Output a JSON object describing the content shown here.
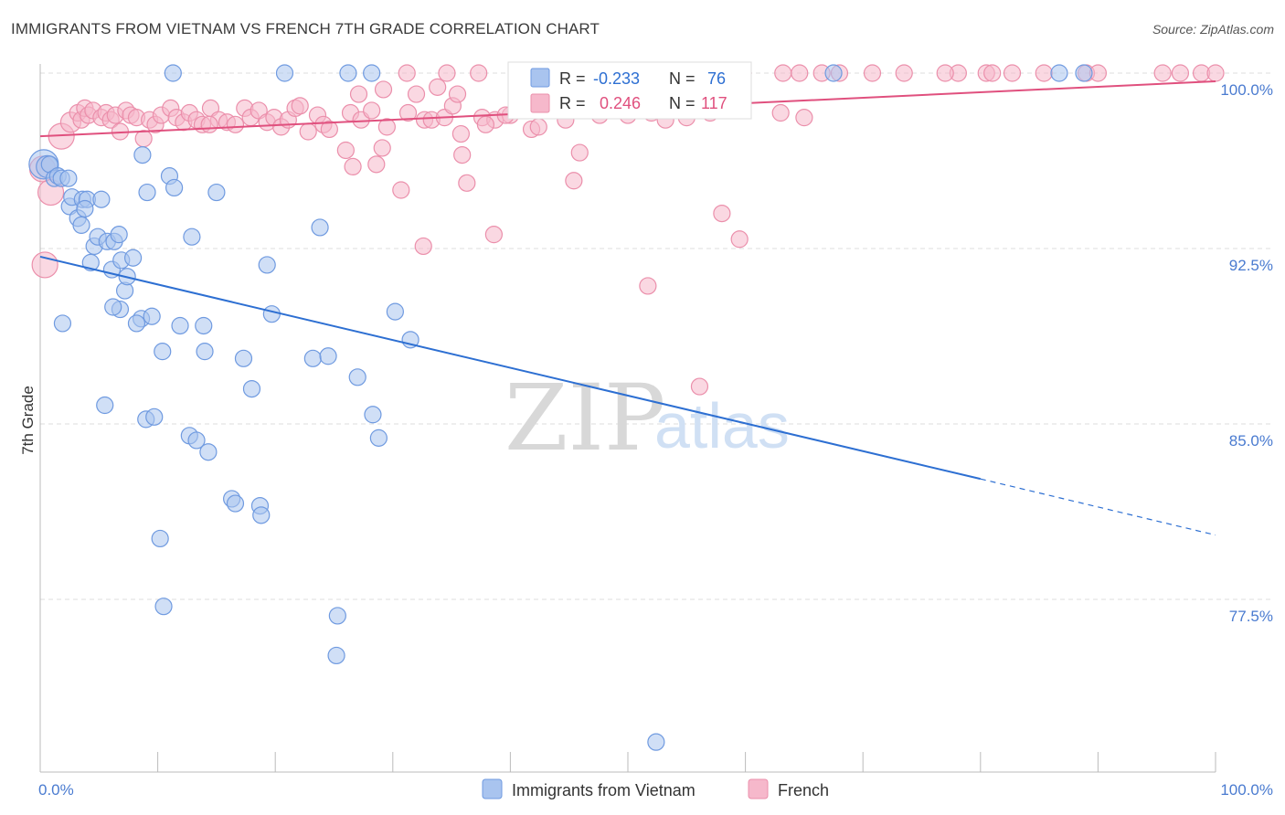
{
  "header": {
    "title": "IMMIGRANTS FROM VIETNAM VS FRENCH 7TH GRADE CORRELATION CHART",
    "source": "Source: ZipAtlas.com"
  },
  "watermark": {
    "zip": "ZIP",
    "atlas": "atlas"
  },
  "colors": {
    "blue_fill": "#a9c4ef",
    "blue_stroke": "#6f9ae0",
    "blue_line": "#2d6fd2",
    "pink_fill": "#f6b8cb",
    "pink_stroke": "#eb8fab",
    "pink_line": "#e0507e",
    "grid": "#dddddd",
    "tick_text": "#4a7bd0"
  },
  "stats": {
    "blue": {
      "r_label": "R =",
      "r_value": "-0.233",
      "n_label": "N =",
      "n_value": "76"
    },
    "pink": {
      "r_label": "R =",
      "r_value": "0.246",
      "n_label": "N =",
      "n_value": "117"
    }
  },
  "chart_data": {
    "type": "scatter",
    "title": "IMMIGRANTS FROM VIETNAM VS FRENCH 7TH GRADE CORRELATION CHART",
    "xlabel": "",
    "ylabel": "7th Grade",
    "xlim": [
      0,
      100
    ],
    "ylim": [
      71.5,
      101.5
    ],
    "x_ticks": [
      0,
      10,
      20,
      30,
      40,
      50,
      60,
      70,
      80,
      90,
      100
    ],
    "x_tick_labels": [
      {
        "value": 0,
        "label": "0.0%"
      },
      {
        "value": 100,
        "label": "100.0%"
      }
    ],
    "y_ticks": [
      {
        "value": 100,
        "label": "100.0%"
      },
      {
        "value": 92.5,
        "label": "92.5%"
      },
      {
        "value": 85,
        "label": "85.0%"
      },
      {
        "value": 77.5,
        "label": "77.5%"
      }
    ],
    "grid": true,
    "legend": {
      "placement": "bottom-center",
      "entries": [
        "Immigrants from Vietnam",
        "French"
      ]
    },
    "series": [
      {
        "name": "Immigrants from Vietnam",
        "color": "#a9c4ef",
        "trend": {
          "x0": 0,
          "y0": 92.15,
          "x1": 80,
          "y1": 82.65,
          "dashed_to_x": 100,
          "dashed_to_y": 80.25
        },
        "points": [
          [
            0.3,
            96.1,
            16
          ],
          [
            0.6,
            96.0,
            12
          ],
          [
            0.8,
            96.1,
            9
          ],
          [
            1.2,
            95.5,
            9
          ],
          [
            1.5,
            95.6,
            9
          ],
          [
            1.8,
            95.5,
            9
          ],
          [
            2.4,
            95.5,
            9
          ],
          [
            2.5,
            94.3,
            9
          ],
          [
            2.7,
            94.7,
            9
          ],
          [
            3.2,
            93.8,
            9
          ],
          [
            3.5,
            93.5,
            9
          ],
          [
            3.6,
            94.6,
            9
          ],
          [
            4.0,
            94.6,
            9
          ],
          [
            4.3,
            91.9,
            9
          ],
          [
            4.6,
            92.6,
            9
          ],
          [
            4.9,
            93.0,
            9
          ],
          [
            5.2,
            94.6,
            9
          ],
          [
            5.7,
            92.8,
            9
          ],
          [
            6.1,
            91.6,
            9
          ],
          [
            6.3,
            92.8,
            9
          ],
          [
            6.7,
            93.1,
            9
          ],
          [
            6.9,
            92.0,
            9
          ],
          [
            7.2,
            90.7,
            9
          ],
          [
            7.4,
            91.3,
            9
          ],
          [
            7.9,
            92.1,
            9
          ],
          [
            8.6,
            89.5,
            9
          ],
          [
            9.1,
            94.9,
            9
          ],
          [
            9.5,
            89.6,
            9
          ],
          [
            10.4,
            88.1,
            9
          ],
          [
            11.0,
            95.6,
            9
          ],
          [
            11.4,
            95.1,
            9
          ],
          [
            11.9,
            89.2,
            9
          ],
          [
            12.9,
            93.0,
            9
          ],
          [
            13.9,
            89.2,
            9
          ],
          [
            14.0,
            88.1,
            9
          ],
          [
            15.0,
            94.9,
            9
          ],
          [
            17.3,
            87.8,
            9
          ],
          [
            18.0,
            86.5,
            9
          ],
          [
            19.3,
            91.8,
            9
          ],
          [
            19.7,
            89.7,
            9
          ],
          [
            23.2,
            87.8,
            9
          ],
          [
            23.8,
            93.4,
            9
          ],
          [
            24.5,
            87.9,
            9
          ],
          [
            27.0,
            87.0,
            9
          ],
          [
            28.3,
            85.4,
            9
          ],
          [
            28.8,
            84.4,
            9
          ],
          [
            30.2,
            89.8,
            9
          ],
          [
            31.5,
            88.6,
            9
          ],
          [
            5.5,
            85.8,
            9
          ],
          [
            9.0,
            85.2,
            9
          ],
          [
            9.7,
            85.3,
            9
          ],
          [
            12.7,
            84.5,
            9
          ],
          [
            13.3,
            84.3,
            9
          ],
          [
            14.3,
            83.8,
            9
          ],
          [
            16.3,
            81.8,
            9
          ],
          [
            16.6,
            81.6,
            9
          ],
          [
            18.7,
            81.5,
            9
          ],
          [
            18.8,
            81.1,
            9
          ],
          [
            10.2,
            80.1,
            9
          ],
          [
            10.5,
            77.2,
            9
          ],
          [
            25.3,
            76.8,
            9
          ],
          [
            25.2,
            75.1,
            9
          ],
          [
            52.4,
            71.4,
            9
          ],
          [
            1.9,
            89.3,
            9
          ],
          [
            6.8,
            89.9,
            9
          ],
          [
            8.2,
            89.3,
            9
          ],
          [
            11.3,
            100.0,
            9
          ],
          [
            20.8,
            100.0,
            9
          ],
          [
            26.2,
            100.0,
            9
          ],
          [
            28.2,
            100.0,
            9
          ],
          [
            67.5,
            100.0,
            9
          ],
          [
            86.7,
            100.0,
            9
          ],
          [
            88.8,
            100.0,
            9
          ],
          [
            8.7,
            96.5,
            9
          ],
          [
            6.2,
            90.0,
            9
          ],
          [
            3.8,
            94.2,
            9
          ]
        ]
      },
      {
        "name": "French",
        "color": "#f6b8cb",
        "trend": {
          "x0": 0,
          "y0": 97.3,
          "x1": 100,
          "y1": 99.65
        },
        "points": [
          [
            0.2,
            95.9,
            14
          ],
          [
            0.4,
            91.8,
            14
          ],
          [
            0.9,
            94.9,
            14
          ],
          [
            1.8,
            97.3,
            14
          ],
          [
            2.6,
            97.9,
            11
          ],
          [
            3.2,
            98.3,
            9
          ],
          [
            3.5,
            98.0,
            9
          ],
          [
            3.8,
            98.5,
            9
          ],
          [
            4.1,
            98.2,
            9
          ],
          [
            4.5,
            98.4,
            9
          ],
          [
            5.2,
            98.1,
            9
          ],
          [
            5.6,
            98.3,
            9
          ],
          [
            6.0,
            98.0,
            9
          ],
          [
            6.4,
            98.2,
            9
          ],
          [
            6.8,
            97.5,
            9
          ],
          [
            7.3,
            98.4,
            9
          ],
          [
            7.7,
            98.2,
            9
          ],
          [
            8.2,
            98.1,
            9
          ],
          [
            8.8,
            97.2,
            9
          ],
          [
            9.3,
            98.0,
            9
          ],
          [
            9.8,
            97.8,
            9
          ],
          [
            10.3,
            98.2,
            9
          ],
          [
            11.1,
            98.5,
            9
          ],
          [
            11.6,
            98.1,
            9
          ],
          [
            12.2,
            97.9,
            9
          ],
          [
            12.7,
            98.3,
            9
          ],
          [
            13.3,
            98.0,
            9
          ],
          [
            13.8,
            97.8,
            9
          ],
          [
            14.5,
            98.5,
            9
          ],
          [
            15.2,
            98.0,
            9
          ],
          [
            15.9,
            97.9,
            9
          ],
          [
            16.6,
            97.8,
            9
          ],
          [
            17.4,
            98.5,
            9
          ],
          [
            17.9,
            98.1,
            9
          ],
          [
            18.6,
            98.4,
            9
          ],
          [
            19.3,
            97.9,
            9
          ],
          [
            19.9,
            98.1,
            9
          ],
          [
            20.5,
            97.7,
            9
          ],
          [
            21.1,
            98.0,
            9
          ],
          [
            21.7,
            98.5,
            9
          ],
          [
            22.1,
            98.6,
            9
          ],
          [
            22.8,
            97.5,
            9
          ],
          [
            23.6,
            98.2,
            9
          ],
          [
            24.1,
            97.8,
            9
          ],
          [
            24.6,
            97.6,
            9
          ],
          [
            26.4,
            98.3,
            9
          ],
          [
            27.3,
            98.0,
            9
          ],
          [
            28.2,
            98.4,
            9
          ],
          [
            29.5,
            97.7,
            9
          ],
          [
            31.3,
            98.3,
            9
          ],
          [
            32.7,
            98.0,
            9
          ],
          [
            33.3,
            98.0,
            9
          ],
          [
            34.4,
            98.1,
            9
          ],
          [
            35.1,
            98.6,
            9
          ],
          [
            35.8,
            97.4,
            9
          ],
          [
            37.6,
            98.1,
            9
          ],
          [
            38.7,
            98.0,
            9
          ],
          [
            40.0,
            98.2,
            9
          ],
          [
            14.4,
            97.8,
            9
          ],
          [
            26.0,
            96.7,
            9
          ],
          [
            26.6,
            96.0,
            9
          ],
          [
            28.6,
            96.1,
            9
          ],
          [
            29.1,
            96.8,
            9
          ],
          [
            30.7,
            95.0,
            9
          ],
          [
            32.0,
            99.1,
            9
          ],
          [
            32.6,
            92.6,
            9
          ],
          [
            33.8,
            99.4,
            9
          ],
          [
            35.5,
            99.1,
            9
          ],
          [
            35.9,
            96.5,
            9
          ],
          [
            36.3,
            95.3,
            9
          ],
          [
            37.9,
            97.8,
            9
          ],
          [
            38.6,
            93.1,
            9
          ],
          [
            39.6,
            98.2,
            9
          ],
          [
            41.8,
            97.6,
            9
          ],
          [
            42.4,
            97.7,
            9
          ],
          [
            44.7,
            98.0,
            9
          ],
          [
            45.4,
            95.4,
            9
          ],
          [
            45.9,
            96.6,
            9
          ],
          [
            47.6,
            98.2,
            9
          ],
          [
            50.0,
            98.2,
            9
          ],
          [
            52.0,
            98.3,
            9
          ],
          [
            53.2,
            98.0,
            9
          ],
          [
            55.0,
            98.1,
            9
          ],
          [
            57.0,
            98.3,
            9
          ],
          [
            58.0,
            94.0,
            9
          ],
          [
            59.5,
            92.9,
            9
          ],
          [
            63.0,
            98.3,
            9
          ],
          [
            65.0,
            98.1,
            9
          ],
          [
            51.7,
            90.9,
            9
          ],
          [
            56.1,
            86.6,
            9
          ],
          [
            27.1,
            99.1,
            9
          ],
          [
            29.2,
            99.3,
            9
          ],
          [
            31.2,
            100.0,
            9
          ],
          [
            37.3,
            100.0,
            9
          ],
          [
            45.4,
            100.0,
            9
          ],
          [
            47.8,
            100.0,
            9
          ],
          [
            50.1,
            100.0,
            9
          ],
          [
            53.2,
            100.0,
            9
          ],
          [
            56.4,
            100.0,
            9
          ],
          [
            59.8,
            100.0,
            9
          ],
          [
            63.2,
            100.0,
            9
          ],
          [
            64.6,
            100.0,
            9
          ],
          [
            66.5,
            100.0,
            9
          ],
          [
            68.0,
            100.0,
            9
          ],
          [
            70.8,
            100.0,
            9
          ],
          [
            73.5,
            100.0,
            9
          ],
          [
            78.1,
            100.0,
            9
          ],
          [
            80.5,
            100.0,
            9
          ],
          [
            81.0,
            100.0,
            9
          ],
          [
            82.7,
            100.0,
            9
          ],
          [
            85.4,
            100.0,
            9
          ],
          [
            89.0,
            100.0,
            9
          ],
          [
            90.0,
            100.0,
            9
          ],
          [
            95.5,
            100.0,
            9
          ],
          [
            97.0,
            100.0,
            9
          ],
          [
            98.8,
            100.0,
            9
          ],
          [
            100.0,
            100.0,
            9
          ],
          [
            77.0,
            100.0,
            9
          ],
          [
            34.6,
            100.0,
            9
          ]
        ]
      }
    ]
  }
}
